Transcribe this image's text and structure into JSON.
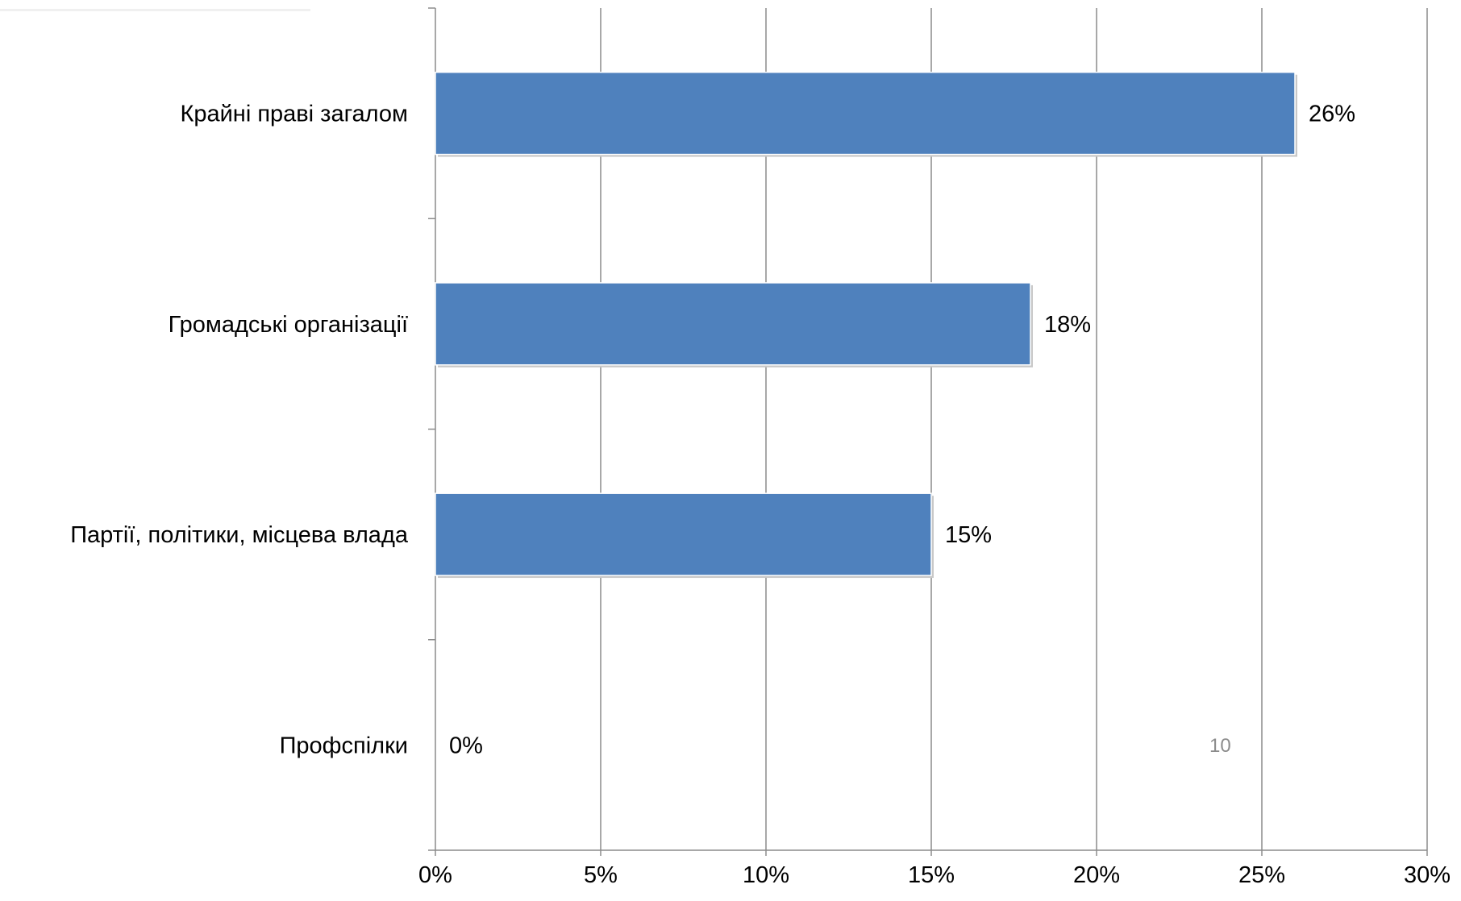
{
  "chart_data": {
    "type": "bar",
    "orientation": "horizontal",
    "categories": [
      "Крайні праві загалом",
      "Громадські організації",
      "Партії, політики, місцева влада",
      "Профспілки"
    ],
    "values": [
      26,
      18,
      15,
      0
    ],
    "data_labels": [
      "26%",
      "18%",
      "15%",
      "0%"
    ],
    "xlim": [
      0,
      30
    ],
    "x_ticks": [
      0,
      5,
      10,
      15,
      20,
      25,
      30
    ],
    "x_tick_labels": [
      "0%",
      "5%",
      "10%",
      "15%",
      "20%",
      "25%",
      "30%"
    ],
    "grid": true,
    "legend": "none",
    "bar_color": "#4f81bd"
  },
  "page": {
    "slide_number": "10"
  }
}
